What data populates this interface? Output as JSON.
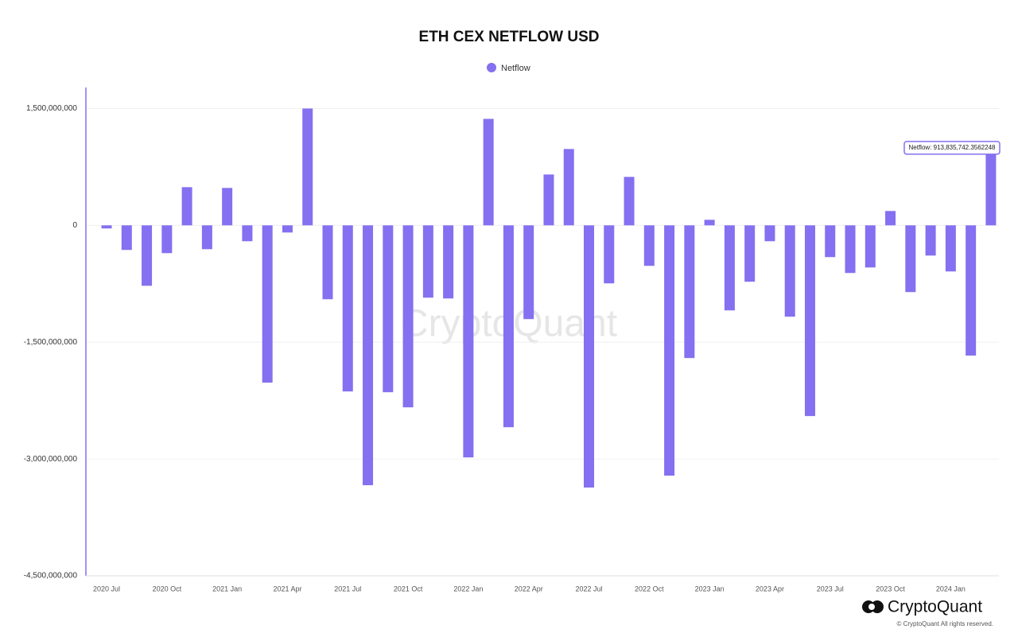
{
  "chart_data": {
    "type": "bar",
    "title": "ETH CEX NETFLOW USD",
    "series": [
      {
        "name": "Netflow",
        "color": "#8470f0",
        "values": [
          -40000000,
          -316000000,
          -776000000,
          -357000000,
          490000000,
          -306000000,
          480000000,
          -204000000,
          -2020000000,
          -92000000,
          1500000000,
          -949000000,
          -2133000000,
          -3337000000,
          -2143000000,
          -2337000000,
          -929000000,
          -939000000,
          -2980000000,
          1367000000,
          -2592000000,
          -1204000000,
          653000000,
          980000000,
          -3367000000,
          -745000000,
          622000000,
          -520000000,
          -3214000000,
          -1704000000,
          71000000,
          -1092000000,
          -724000000,
          -204000000,
          -1173000000,
          -2449000000,
          -408000000,
          -612000000,
          -541000000,
          184000000,
          -857000000,
          -388000000,
          -592000000,
          -1673000000,
          913835742.3562248
        ]
      }
    ],
    "categories": [
      "2020 Jul",
      null,
      null,
      "2020 Oct",
      null,
      null,
      "2021 Jan",
      null,
      null,
      "2021 Apr",
      null,
      null,
      "2021 Jul",
      null,
      null,
      "2021 Oct",
      null,
      null,
      "2022 Jan",
      null,
      null,
      "2022 Apr",
      null,
      null,
      "2022 Jul",
      null,
      null,
      "2022 Oct",
      null,
      null,
      "2023 Jan",
      null,
      null,
      "2023 Apr",
      null,
      null,
      "2023 Jul",
      null,
      null,
      "2023 Oct",
      null,
      null,
      "2024 Jan",
      null,
      null
    ],
    "ylim": [
      -4500000000,
      1770000000
    ],
    "yticks": [
      {
        "value": -4500000000,
        "label": "-4,500,000,000"
      },
      {
        "value": -3000000000,
        "label": "-3,000,000,000"
      },
      {
        "value": -1500000000,
        "label": "-1,500,000,000"
      },
      0,
      {
        "value": 1500000000,
        "label": "1,500,000,000"
      }
    ],
    "grid": true,
    "tooltip": "Netflow: 913,835,742.3562248",
    "watermark": "CryptoQuant",
    "brand": "CryptoQuant",
    "copyright": "© CryptoQuant All rights reserved."
  }
}
